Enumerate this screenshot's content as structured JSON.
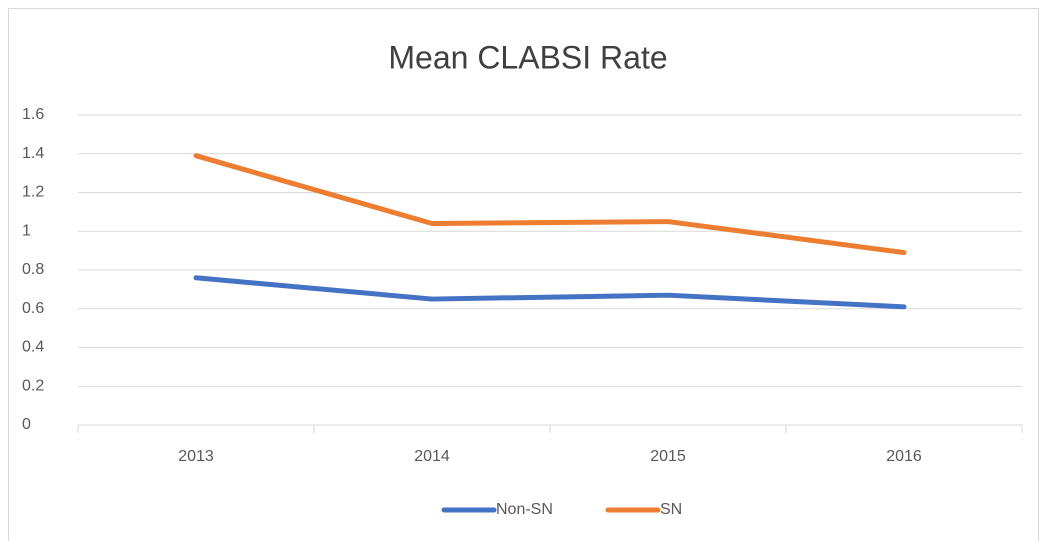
{
  "chart_data": {
    "type": "line",
    "title": "Mean CLABSI Rate",
    "categories": [
      "2013",
      "2014",
      "2015",
      "2016"
    ],
    "series": [
      {
        "name": "Non-SN",
        "color": "#4472c4",
        "values": [
          0.76,
          0.65,
          0.67,
          0.61
        ]
      },
      {
        "name": "SN",
        "color": "#ed7d31",
        "values": [
          1.39,
          1.04,
          1.05,
          0.89
        ]
      }
    ],
    "ylim": [
      0,
      1.6
    ],
    "yticks": [
      0,
      0.2,
      0.4,
      0.6,
      0.8,
      1,
      1.2,
      1.4,
      1.6
    ],
    "grid": true,
    "legend": "bottom"
  }
}
